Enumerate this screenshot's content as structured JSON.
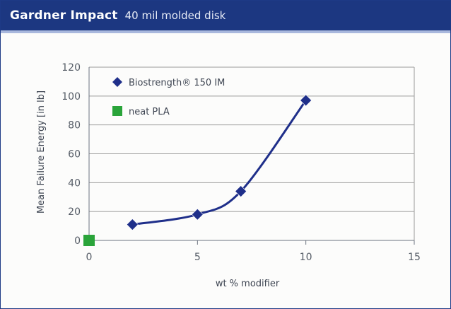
{
  "header": {
    "title": "Gardner Impact",
    "subtitle": "40 mil molded disk"
  },
  "colors": {
    "header_bg": "#1c3781",
    "series_line": "#1f2f8a",
    "series_marker": "#1f2f8a",
    "neat_marker": "#2aa43a",
    "grid": "#9a9a9a"
  },
  "chart_data": {
    "type": "scatter",
    "title": "Gardner Impact",
    "subtitle": "40 mil molded disk",
    "xlabel": "wt % modifier",
    "ylabel": "Mean Failure Energy [in lb]",
    "xlim": [
      0,
      15
    ],
    "ylim": [
      0,
      120
    ],
    "xticks": [
      0,
      5,
      10,
      15
    ],
    "yticks": [
      0,
      20,
      40,
      60,
      80,
      100,
      120
    ],
    "grid": "horizontal",
    "legend_position": "top-left",
    "series": [
      {
        "name": "Biostrength® 150 IM",
        "marker": "diamond",
        "smooth_line": true,
        "color": "#1f2f8a",
        "points": [
          {
            "x": 2,
            "y": 11
          },
          {
            "x": 5,
            "y": 18
          },
          {
            "x": 7,
            "y": 34
          },
          {
            "x": 10,
            "y": 97
          }
        ]
      },
      {
        "name": "neat PLA",
        "marker": "square",
        "smooth_line": false,
        "color": "#2aa43a",
        "points": [
          {
            "x": 0,
            "y": 0
          }
        ]
      }
    ]
  }
}
